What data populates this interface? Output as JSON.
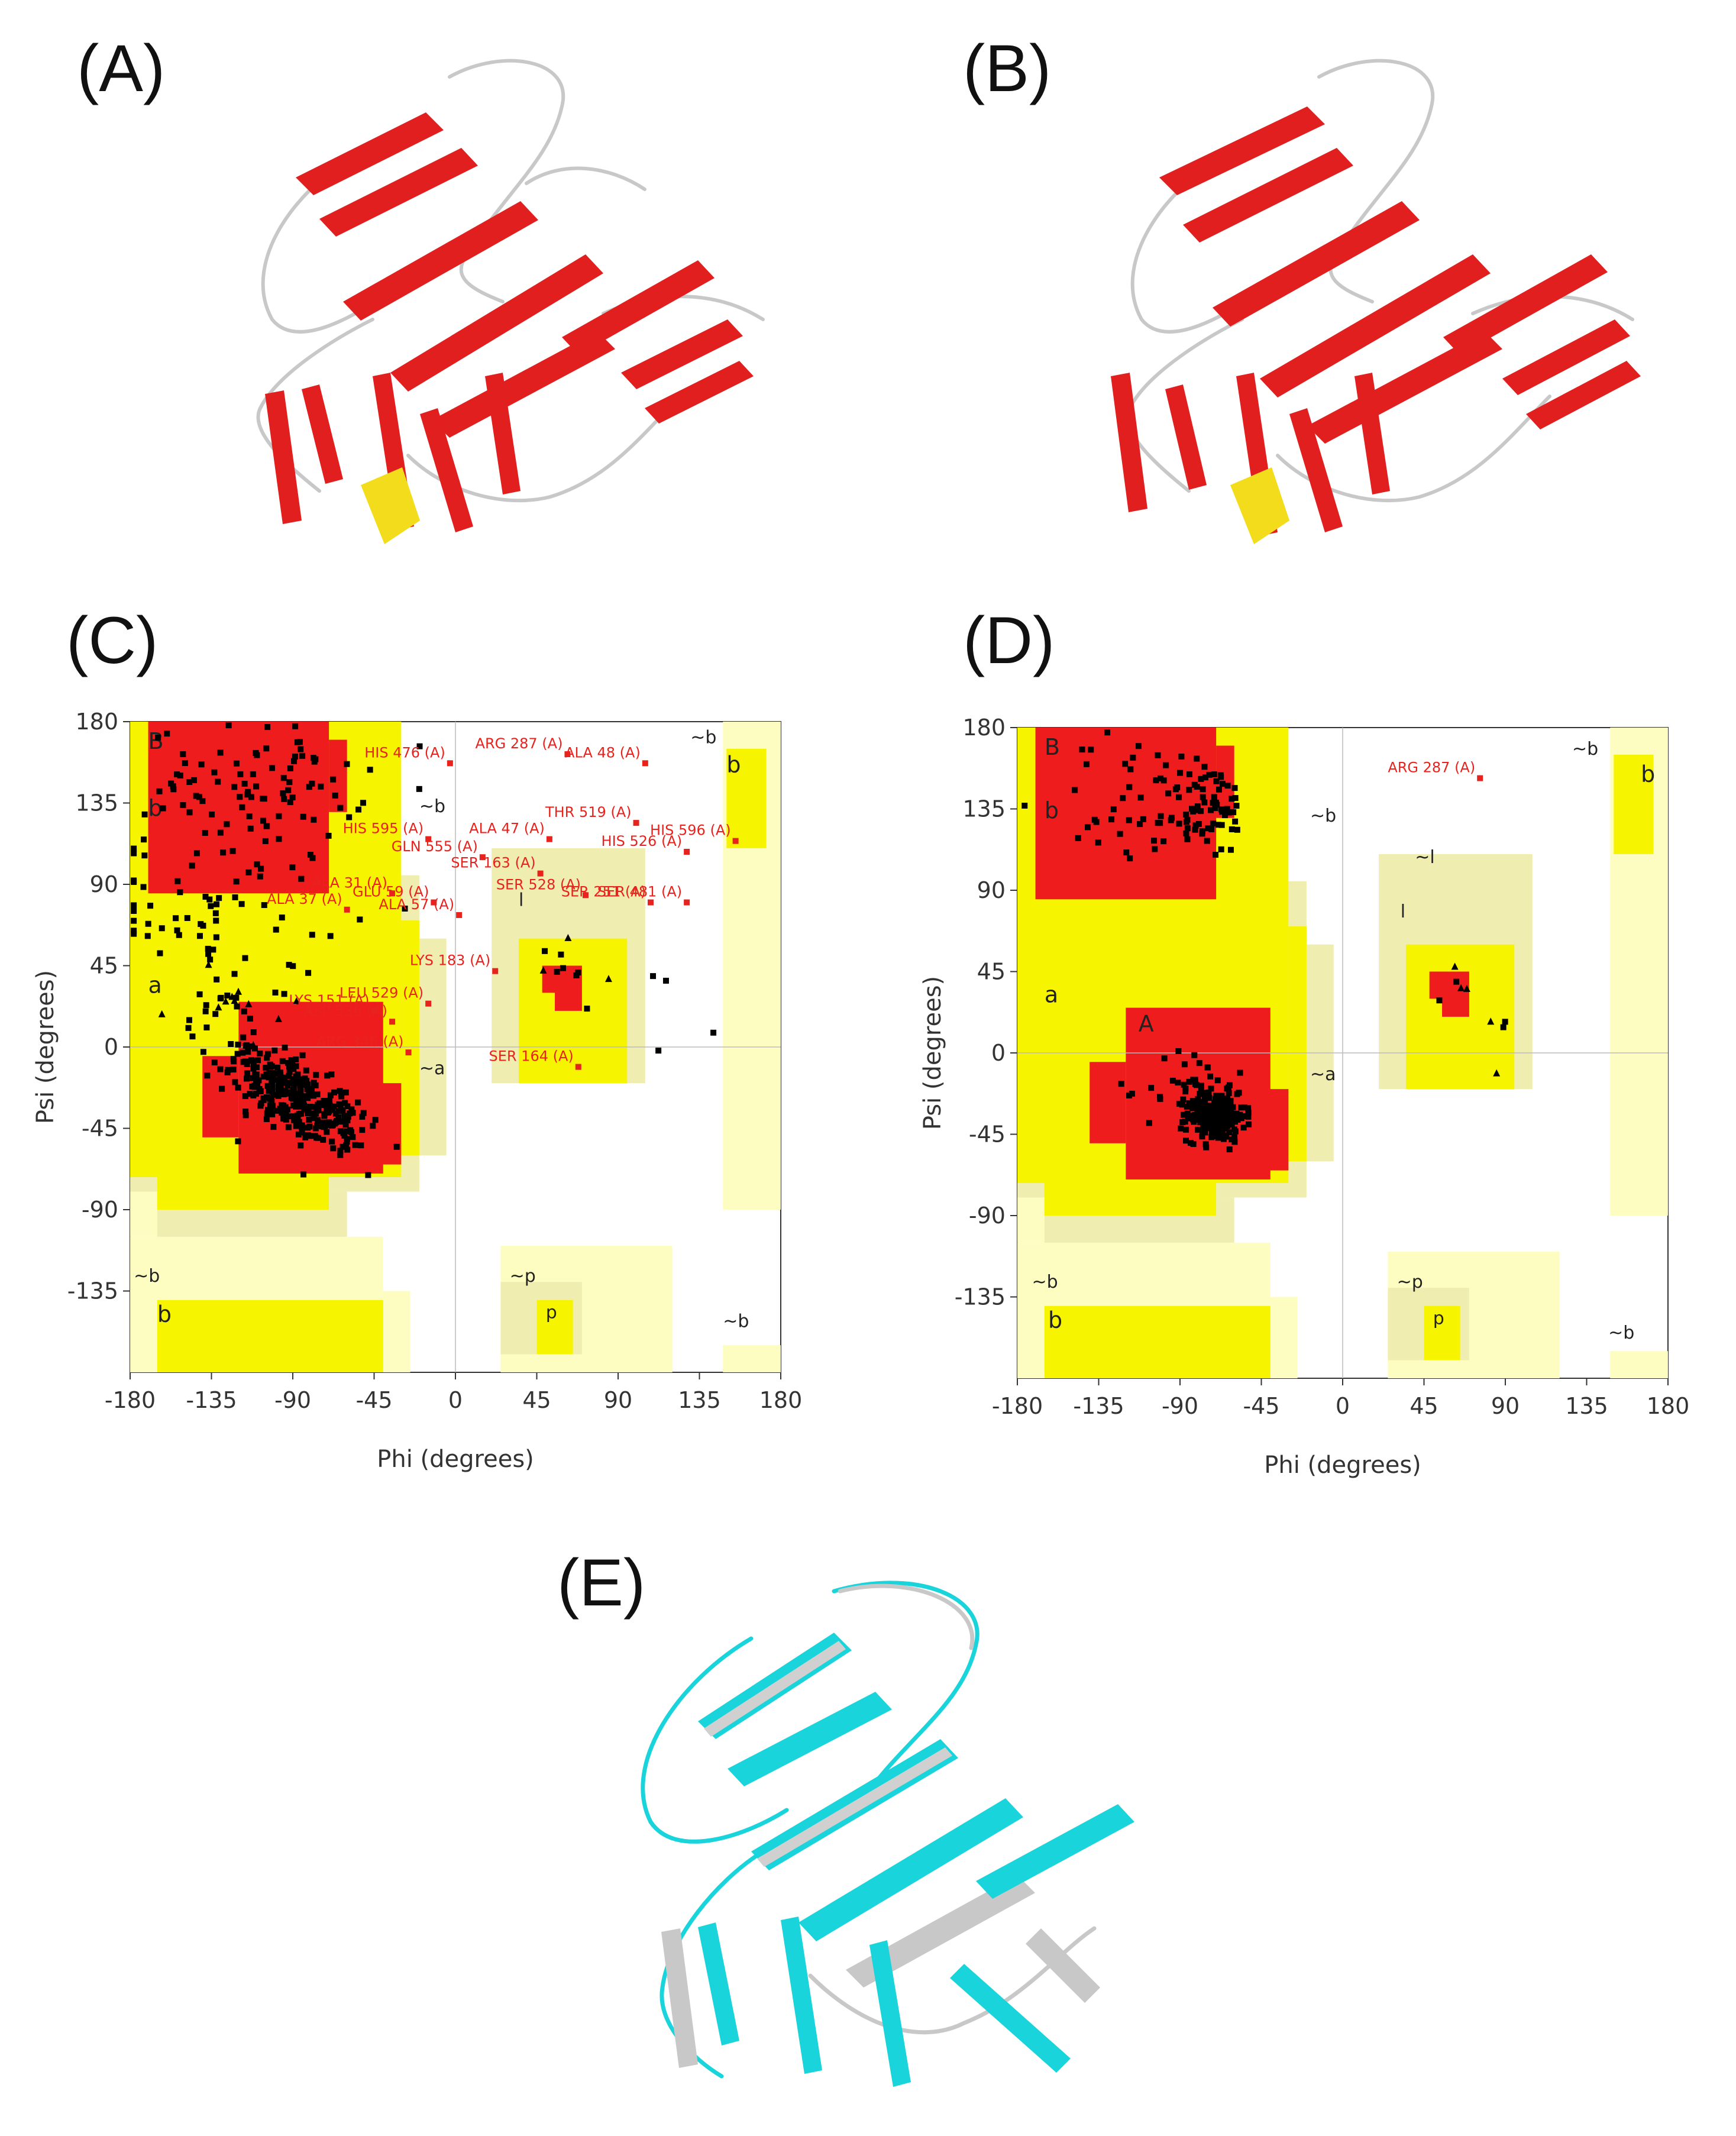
{
  "panel_labels": {
    "a": "(A)",
    "b": "(B)",
    "c": "(C)",
    "d": "(D)",
    "e": "(E)"
  },
  "colors": {
    "helix": "#e21f1f",
    "strand": "#f2dc1b",
    "coil": "#c8c8c8",
    "model_e": "#1ad4dc",
    "core": "#ee1c1c",
    "allowed": "#f7f400",
    "generous": "#efeeb0",
    "light": "#fdfdc2"
  },
  "icons": {
    "structure_a": "protein-ribbon-icon",
    "structure_b": "protein-ribbon-icon",
    "structure_e": "superposed-ribbon-icon"
  },
  "chart_data": [
    {
      "type": "scatter",
      "panel": "(C)",
      "xlabel": "Phi (degrees)",
      "ylabel": "Psi (degrees)",
      "xlim": [
        -180,
        180
      ],
      "ylim": [
        -180,
        180
      ],
      "xticks": [
        "-180",
        "-135",
        "-90",
        "-45",
        "0",
        "45",
        "90",
        "135",
        "180"
      ],
      "yticks": [
        "180",
        "135",
        "90",
        "45",
        "0",
        "-45",
        "-90",
        "-135"
      ],
      "region_labels": [
        {
          "text": "B",
          "x": -170,
          "y": 165
        },
        {
          "text": "b",
          "x": -170,
          "y": 128
        },
        {
          "text": "a",
          "x": -170,
          "y": 30
        },
        {
          "text": "~b",
          "x": -178,
          "y": -130
        },
        {
          "text": "b",
          "x": -165,
          "y": -152
        },
        {
          "text": "~b",
          "x": -20,
          "y": 130
        },
        {
          "text": "~a",
          "x": -20,
          "y": -15
        },
        {
          "text": "~b",
          "x": 130,
          "y": 168
        },
        {
          "text": "b",
          "x": 150,
          "y": 152
        },
        {
          "text": "~b",
          "x": 148,
          "y": -155
        },
        {
          "text": "l",
          "x": 35,
          "y": 78
        },
        {
          "text": "~p",
          "x": 30,
          "y": -130
        },
        {
          "text": "p",
          "x": 50,
          "y": -150
        }
      ],
      "labeled_residues": [
        {
          "label": "HIS 476 (A)",
          "x": -3,
          "y": 157
        },
        {
          "label": "ARG 287 (A)",
          "x": 62,
          "y": 162
        },
        {
          "label": "ALA 48 (A)",
          "x": 105,
          "y": 157
        },
        {
          "label": "THR 519 (A)",
          "x": 100,
          "y": 124
        },
        {
          "label": "HIS 595 (A)",
          "x": -15,
          "y": 115
        },
        {
          "label": "ALA 47 (A)",
          "x": 52,
          "y": 115
        },
        {
          "label": "GLN 555 (A)",
          "x": 15,
          "y": 105
        },
        {
          "label": "HIS 526 (A)",
          "x": 128,
          "y": 108
        },
        {
          "label": "HIS 596 (A)",
          "x": 155,
          "y": 114
        },
        {
          "label": "SER 163 (A)",
          "x": 47,
          "y": 96
        },
        {
          "label": "SER 528 (A)",
          "x": 72,
          "y": 84
        },
        {
          "label": "SER 481 (A)",
          "x": 128,
          "y": 80
        },
        {
          "label": "SER 251 (A)",
          "x": 108,
          "y": 80
        },
        {
          "label": "ALA 31 (A)",
          "x": -35,
          "y": 85
        },
        {
          "label": "GLU 59 (A)",
          "x": -12,
          "y": 80
        },
        {
          "label": "ALA 37 (A)",
          "x": -60,
          "y": 76
        },
        {
          "label": "ALA 57 (A)",
          "x": 2,
          "y": 73
        },
        {
          "label": "LYS 183 (A)",
          "x": 22,
          "y": 42
        },
        {
          "label": "LEU 529 (A)",
          "x": -15,
          "y": 24
        },
        {
          "label": "LYS 151 (A)",
          "x": -45,
          "y": 20
        },
        {
          "label": "ASP 536 (A)",
          "x": -35,
          "y": 14
        },
        {
          "label": "ARG 346 (A)",
          "x": -26,
          "y": -3
        },
        {
          "label": "SER 164 (A)",
          "x": 68,
          "y": -11
        }
      ]
    },
    {
      "type": "scatter",
      "panel": "(D)",
      "xlabel": "Phi (degrees)",
      "ylabel": "Psi (degrees)",
      "xlim": [
        -180,
        180
      ],
      "ylim": [
        -180,
        180
      ],
      "xticks": [
        "-180",
        "-135",
        "-90",
        "-45",
        "0",
        "45",
        "90",
        "135",
        "180"
      ],
      "yticks": [
        "180",
        "135",
        "90",
        "45",
        "0",
        "-45",
        "-90",
        "-135"
      ],
      "region_labels": [
        {
          "text": "B",
          "x": -165,
          "y": 165
        },
        {
          "text": "b",
          "x": -165,
          "y": 130
        },
        {
          "text": "a",
          "x": -165,
          "y": 28
        },
        {
          "text": "A",
          "x": -113,
          "y": 12
        },
        {
          "text": "~b",
          "x": -172,
          "y": -130
        },
        {
          "text": "b",
          "x": -163,
          "y": -152
        },
        {
          "text": "~b",
          "x": -18,
          "y": 128
        },
        {
          "text": "~a",
          "x": -18,
          "y": -15
        },
        {
          "text": "~l",
          "x": 40,
          "y": 105
        },
        {
          "text": "l",
          "x": 32,
          "y": 75
        },
        {
          "text": "~b",
          "x": 127,
          "y": 165
        },
        {
          "text": "b",
          "x": 165,
          "y": 150
        },
        {
          "text": "~p",
          "x": 30,
          "y": -130
        },
        {
          "text": "p",
          "x": 50,
          "y": -150
        },
        {
          "text": "~b",
          "x": 147,
          "y": -158
        }
      ],
      "labeled_residues": [
        {
          "label": "ARG 287 (A)",
          "x": 76,
          "y": 152
        }
      ]
    }
  ]
}
